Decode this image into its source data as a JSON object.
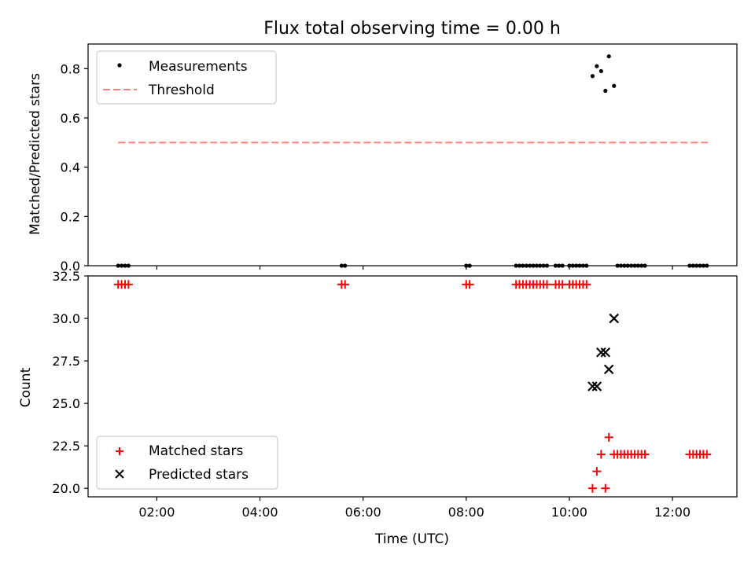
{
  "chart_data": [
    {
      "type": "scatter",
      "title": "Flux total observing time = 0.00 h",
      "xlabel": "",
      "ylabel": "Matched/Predicted stars",
      "xlim": [
        "00:40",
        "13:15"
      ],
      "ylim": [
        0,
        0.9
      ],
      "xticks": [
        "02:00",
        "04:00",
        "06:00",
        "08:00",
        "10:00",
        "12:00"
      ],
      "yticks": [
        "0.0",
        "0.2",
        "0.4",
        "0.6",
        "0.8"
      ],
      "grid": false,
      "legend_position": "upper-left",
      "legend": [
        "Measurements",
        "Threshold"
      ],
      "threshold": {
        "name": "Threshold",
        "value": 0.5,
        "x_range": [
          "01:15",
          "12:42"
        ],
        "color": "#ff7f7f"
      },
      "series": [
        {
          "name": "Measurements",
          "marker": "dot",
          "color": "#000000",
          "points": [
            [
              "01:15",
              0
            ],
            [
              "01:19",
              0
            ],
            [
              "01:23",
              0
            ],
            [
              "01:27",
              0
            ],
            [
              "05:35",
              0
            ],
            [
              "05:39",
              0
            ],
            [
              "08:00",
              0
            ],
            [
              "08:04",
              0
            ],
            [
              "08:58",
              0
            ],
            [
              "09:02",
              0
            ],
            [
              "09:06",
              0
            ],
            [
              "09:10",
              0
            ],
            [
              "09:14",
              0
            ],
            [
              "09:18",
              0
            ],
            [
              "09:22",
              0
            ],
            [
              "09:26",
              0
            ],
            [
              "09:30",
              0
            ],
            [
              "09:34",
              0
            ],
            [
              "09:44",
              0
            ],
            [
              "09:48",
              0
            ],
            [
              "09:52",
              0
            ],
            [
              "10:00",
              0
            ],
            [
              "10:04",
              0
            ],
            [
              "10:08",
              0
            ],
            [
              "10:12",
              0
            ],
            [
              "10:16",
              0
            ],
            [
              "10:20",
              0
            ],
            [
              "10:27",
              0.77
            ],
            [
              "10:32",
              0.81
            ],
            [
              "10:37",
              0.79
            ],
            [
              "10:42",
              0.71
            ],
            [
              "10:46",
              0.85
            ],
            [
              "10:52",
              0.73
            ],
            [
              "10:56",
              0
            ],
            [
              "11:00",
              0
            ],
            [
              "11:04",
              0
            ],
            [
              "11:08",
              0
            ],
            [
              "11:12",
              0
            ],
            [
              "11:16",
              0
            ],
            [
              "11:20",
              0
            ],
            [
              "11:24",
              0
            ],
            [
              "11:28",
              0
            ],
            [
              "12:20",
              0
            ],
            [
              "12:24",
              0
            ],
            [
              "12:28",
              0
            ],
            [
              "12:32",
              0
            ],
            [
              "12:36",
              0
            ],
            [
              "12:40",
              0
            ]
          ]
        }
      ]
    },
    {
      "type": "scatter",
      "title": "",
      "xlabel": "Time (UTC)",
      "ylabel": "Count",
      "xlim": [
        "00:40",
        "13:15"
      ],
      "ylim": [
        19.5,
        32.5
      ],
      "xticks": [
        "02:00",
        "04:00",
        "06:00",
        "08:00",
        "10:00",
        "12:00"
      ],
      "yticks": [
        "20.0",
        "22.5",
        "25.0",
        "27.5",
        "30.0",
        "32.5"
      ],
      "grid": false,
      "legend_position": "lower-left",
      "legend": [
        "Matched stars",
        "Predicted stars"
      ],
      "series": [
        {
          "name": "Matched stars",
          "marker": "plus",
          "color": "#ff0000",
          "points": [
            [
              "01:15",
              32
            ],
            [
              "01:19",
              32
            ],
            [
              "01:23",
              32
            ],
            [
              "01:27",
              32
            ],
            [
              "05:35",
              32
            ],
            [
              "05:39",
              32
            ],
            [
              "08:00",
              32
            ],
            [
              "08:04",
              32
            ],
            [
              "08:58",
              32
            ],
            [
              "09:02",
              32
            ],
            [
              "09:06",
              32
            ],
            [
              "09:10",
              32
            ],
            [
              "09:14",
              32
            ],
            [
              "09:18",
              32
            ],
            [
              "09:22",
              32
            ],
            [
              "09:26",
              32
            ],
            [
              "09:30",
              32
            ],
            [
              "09:34",
              32
            ],
            [
              "09:44",
              32
            ],
            [
              "09:48",
              32
            ],
            [
              "09:52",
              32
            ],
            [
              "10:00",
              32
            ],
            [
              "10:04",
              32
            ],
            [
              "10:08",
              32
            ],
            [
              "10:12",
              32
            ],
            [
              "10:16",
              32
            ],
            [
              "10:20",
              32
            ],
            [
              "10:27",
              20
            ],
            [
              "10:32",
              21
            ],
            [
              "10:37",
              22
            ],
            [
              "10:42",
              20
            ],
            [
              "10:46",
              23
            ],
            [
              "10:52",
              22
            ],
            [
              "10:56",
              22
            ],
            [
              "11:00",
              22
            ],
            [
              "11:04",
              22
            ],
            [
              "11:08",
              22
            ],
            [
              "11:12",
              22
            ],
            [
              "11:16",
              22
            ],
            [
              "11:20",
              22
            ],
            [
              "11:24",
              22
            ],
            [
              "11:28",
              22
            ],
            [
              "12:20",
              22
            ],
            [
              "12:24",
              22
            ],
            [
              "12:28",
              22
            ],
            [
              "12:32",
              22
            ],
            [
              "12:36",
              22
            ],
            [
              "12:40",
              22
            ]
          ]
        },
        {
          "name": "Predicted stars",
          "marker": "x",
          "color": "#000000",
          "points": [
            [
              "10:27",
              26
            ],
            [
              "10:32",
              26
            ],
            [
              "10:37",
              28
            ],
            [
              "10:42",
              28
            ],
            [
              "10:46",
              27
            ],
            [
              "10:52",
              30
            ]
          ]
        }
      ]
    }
  ]
}
